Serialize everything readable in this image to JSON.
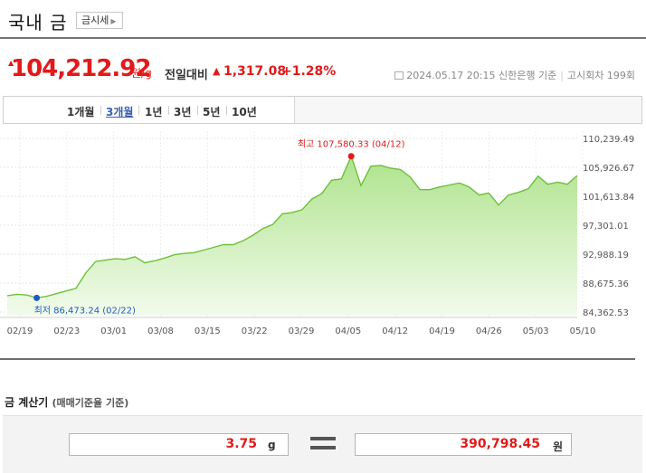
{
  "header": {
    "title": "국내 금",
    "quote_button": "금시세"
  },
  "price": {
    "current": "104,212.92",
    "unit": "원/g",
    "change_label": "전일대비",
    "change_value": "1,317.08",
    "change_pct": "+1.28%",
    "date": "2024.05.17 20:15",
    "bank": "신한은행 기준",
    "round": "고시회차 199회"
  },
  "tabs": [
    "1개월",
    "3개월",
    "1년",
    "3년",
    "5년",
    "10년"
  ],
  "active_tab": "3개월",
  "chart_data": {
    "type": "area",
    "y_ticks": [
      "110,239.49",
      "105,926.67",
      "101,613.84",
      "97,301.01",
      "92,988.19",
      "88,675.36",
      "84,362.53"
    ],
    "ylim": [
      84362.53,
      110239.49
    ],
    "x_ticks": [
      "02/19",
      "02/23",
      "03/01",
      "03/08",
      "03/15",
      "03/22",
      "03/29",
      "04/05",
      "04/12",
      "04/19",
      "04/26",
      "05/03",
      "05/10"
    ],
    "values": [
      86800,
      87000,
      86900,
      86473.24,
      86700,
      87100,
      87500,
      87900,
      90200,
      91900,
      92100,
      92300,
      92200,
      92600,
      91700,
      92000,
      92400,
      92900,
      93100,
      93200,
      93600,
      94000,
      94400,
      94400,
      95000,
      95800,
      96800,
      97400,
      99000,
      99200,
      99600,
      101200,
      102000,
      104000,
      104200,
      107580.33,
      103200,
      106100,
      106200,
      105800,
      105600,
      104500,
      102600,
      102600,
      103000,
      103300,
      103600,
      103000,
      101800,
      102100,
      100300,
      101800,
      102200,
      102700,
      104600,
      103400,
      103700,
      103400,
      104700
    ],
    "max_label": "최고 107,580.33 (04/12)",
    "min_label": "최저 86,473.24 (02/22)"
  },
  "calc": {
    "title": "금 계산기",
    "subtitle": "(매매기준율 기준)",
    "grams": "3.75",
    "grams_unit": "g",
    "won": "390,798.45",
    "won_unit": "원"
  },
  "colors": {
    "up": "#e21a1a",
    "line": "#6cc13a",
    "fill_top": "#aee38c",
    "fill_bottom": "#f2fbec",
    "min_dot": "#1e5bc6"
  }
}
